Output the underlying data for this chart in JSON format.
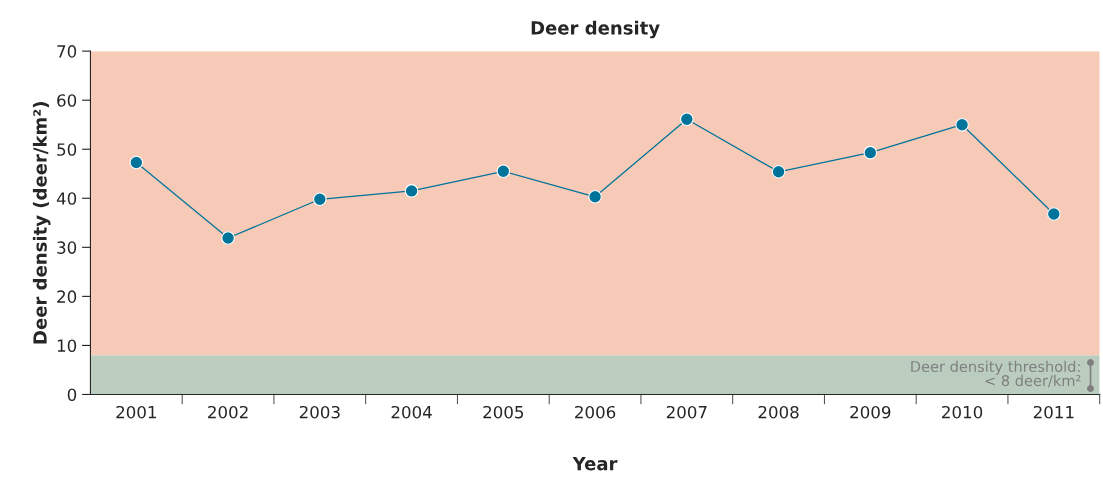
{
  "chart_data": {
    "type": "line",
    "title": "Deer density",
    "xlabel": "Year",
    "ylabel": "Deer density (deer/km²)",
    "categories": [
      "2001",
      "2002",
      "2003",
      "2004",
      "2005",
      "2006",
      "2007",
      "2008",
      "2009",
      "2010",
      "2011"
    ],
    "series": [
      {
        "color": "#00739a",
        "values": [
          47.3,
          31.9,
          39.8,
          41.5,
          45.5,
          40.3,
          56.1,
          45.4,
          49.3,
          55.0,
          36.8
        ]
      }
    ],
    "ylim": [
      0,
      70
    ],
    "yticks": [
      0,
      10,
      20,
      30,
      40,
      50,
      60,
      70
    ],
    "bands": [
      {
        "axis": "y",
        "from": 0,
        "to": 8,
        "label": "Deer density threshold:\n< 8 deer/km²",
        "color": "#bacdbf"
      },
      {
        "axis": "y",
        "from": 8,
        "to": 70,
        "color": "#f6cab7"
      }
    ],
    "marker": "circle",
    "line_style": "solid",
    "grid": false,
    "legend": false
  }
}
